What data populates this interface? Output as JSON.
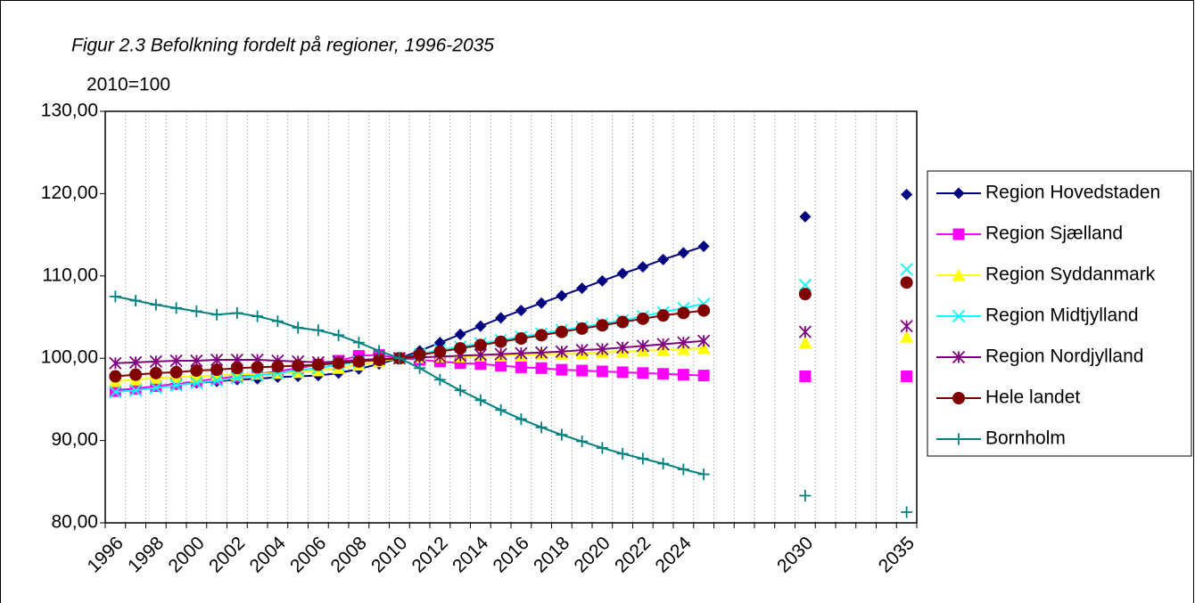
{
  "chart_data": {
    "type": "line",
    "title": "Figur 2.3 Befolkning fordelt på regioner, 1996-2035",
    "y_label": "2010=100",
    "categories": [
      "1996",
      null,
      "1998",
      null,
      "2000",
      null,
      "2002",
      null,
      "2004",
      null,
      "2006",
      null,
      "2008",
      null,
      "2010",
      null,
      "2012",
      null,
      "2014",
      null,
      "2016",
      null,
      "2018",
      null,
      "2020",
      null,
      "2022",
      null,
      "2024",
      null,
      null,
      null,
      null,
      null,
      "2030",
      null,
      null,
      null,
      null,
      "2035"
    ],
    "ylim": [
      80,
      130
    ],
    "yticks": [
      {
        "value": 80,
        "label": "80,00"
      },
      {
        "value": 90,
        "label": "90,00"
      },
      {
        "value": 100,
        "label": "100,00"
      },
      {
        "value": 110,
        "label": "110,00"
      },
      {
        "value": 120,
        "label": "120,00"
      },
      {
        "value": 130,
        "label": "130,00"
      }
    ],
    "grid": true,
    "legend": "right",
    "series": [
      {
        "name": "Region Hovedstaden",
        "color": "#000080",
        "marker": "diamond",
        "values": [
          96.1,
          96.3,
          96.6,
          96.8,
          97.0,
          97.2,
          97.4,
          97.5,
          97.7,
          97.8,
          97.9,
          98.2,
          98.7,
          99.3,
          100,
          100.9,
          101.9,
          102.9,
          103.9,
          104.9,
          105.8,
          106.7,
          107.6,
          108.5,
          109.4,
          110.3,
          111.1,
          112.0,
          112.8,
          113.6,
          null,
          null,
          null,
          null,
          117.2,
          null,
          null,
          null,
          null,
          119.9
        ]
      },
      {
        "name": "Region Sjælland",
        "color": "#ff00ff",
        "marker": "square",
        "values": [
          96.0,
          96.3,
          96.6,
          96.9,
          97.2,
          97.5,
          97.8,
          98.1,
          98.4,
          98.8,
          99.2,
          99.7,
          100.3,
          100.4,
          100,
          99.8,
          99.6,
          99.4,
          99.3,
          99.1,
          98.9,
          98.8,
          98.6,
          98.5,
          98.4,
          98.3,
          98.2,
          98.1,
          98.0,
          97.9,
          null,
          null,
          null,
          null,
          97.8,
          null,
          null,
          null,
          null,
          97.8
        ]
      },
      {
        "name": "Region Syddanmark",
        "color": "#ffff00",
        "marker": "triangle",
        "values": [
          97.2,
          97.4,
          97.6,
          97.7,
          97.8,
          97.9,
          98.0,
          98.1,
          98.2,
          98.3,
          98.5,
          98.8,
          99.2,
          99.6,
          100,
          100.1,
          100.2,
          100.2,
          100.3,
          100.3,
          100.4,
          100.5,
          100.5,
          100.6,
          100.7,
          100.8,
          100.9,
          101.0,
          101.1,
          101.2,
          null,
          null,
          null,
          null,
          101.9,
          null,
          null,
          null,
          null,
          102.6
        ]
      },
      {
        "name": "Region Midtjylland",
        "color": "#00ffff",
        "marker": "x",
        "values": [
          95.9,
          96.1,
          96.4,
          96.7,
          97.0,
          97.3,
          97.6,
          97.9,
          98.2,
          98.5,
          98.8,
          99.2,
          99.6,
          99.9,
          100,
          100.5,
          101.0,
          101.4,
          101.8,
          102.2,
          102.6,
          103.0,
          103.4,
          103.8,
          104.2,
          104.6,
          105.1,
          105.6,
          106.1,
          106.6,
          null,
          null,
          null,
          null,
          108.9,
          null,
          null,
          null,
          null,
          110.8
        ]
      },
      {
        "name": "Region Nordjylland",
        "color": "#800080",
        "marker": "star",
        "values": [
          99.4,
          99.5,
          99.6,
          99.7,
          99.7,
          99.8,
          99.8,
          99.8,
          99.7,
          99.6,
          99.5,
          99.6,
          99.8,
          99.9,
          100,
          100.1,
          100.2,
          100.3,
          100.4,
          100.5,
          100.6,
          100.7,
          100.8,
          101.0,
          101.1,
          101.3,
          101.5,
          101.7,
          101.9,
          102.1,
          null,
          null,
          null,
          null,
          103.2,
          null,
          null,
          null,
          null,
          103.9
        ]
      },
      {
        "name": "Hele landet",
        "color": "#800000",
        "marker": "circle",
        "values": [
          97.8,
          98.0,
          98.2,
          98.3,
          98.5,
          98.6,
          98.8,
          98.9,
          99.0,
          99.1,
          99.2,
          99.4,
          99.6,
          99.8,
          100,
          100.4,
          100.8,
          101.2,
          101.6,
          102.0,
          102.4,
          102.8,
          103.2,
          103.6,
          104.0,
          104.4,
          104.8,
          105.2,
          105.5,
          105.8,
          null,
          null,
          null,
          null,
          107.8,
          null,
          null,
          null,
          null,
          109.2
        ]
      },
      {
        "name": "Bornholm",
        "color": "#008080",
        "marker": "plus",
        "values": [
          107.5,
          107.0,
          106.5,
          106.1,
          105.7,
          105.3,
          105.5,
          105.1,
          104.5,
          103.7,
          103.4,
          102.8,
          101.9,
          100.9,
          100,
          98.8,
          97.4,
          96.1,
          94.9,
          93.7,
          92.6,
          91.6,
          90.7,
          89.9,
          89.1,
          88.4,
          87.8,
          87.2,
          86.5,
          85.9,
          null,
          null,
          null,
          null,
          83.3,
          null,
          null,
          null,
          null,
          81.3
        ]
      }
    ]
  }
}
